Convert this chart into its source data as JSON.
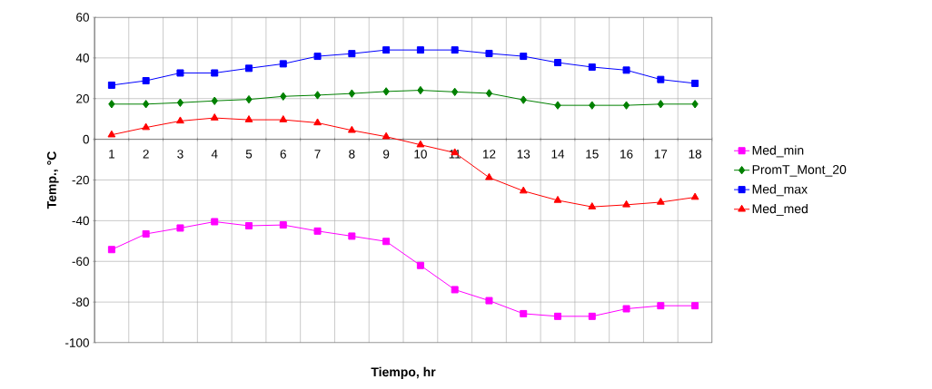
{
  "chart_data": {
    "type": "line",
    "xlabel": "Tiempo, hr",
    "ylabel": "Temp., °C",
    "categories": [
      "1",
      "2",
      "3",
      "4",
      "5",
      "6",
      "7",
      "8",
      "9",
      "10",
      "11",
      "12",
      "13",
      "14",
      "15",
      "16",
      "17",
      "18"
    ],
    "ylim": [
      -100,
      60
    ],
    "yticks": [
      -100,
      -80,
      -60,
      -40,
      -20,
      0,
      20,
      40,
      60
    ],
    "grid": true,
    "legend": "right",
    "series": [
      {
        "name": "Med_min",
        "color": "#ff00ff",
        "marker": "square",
        "values": [
          -54.2,
          -46.5,
          -43.6,
          -40.5,
          -42.5,
          -42.1,
          -45.1,
          -47.6,
          -50.2,
          -62.0,
          -73.9,
          -79.3,
          -85.7,
          -87.0,
          -87.0,
          -83.3,
          -81.8,
          -81.8
        ]
      },
      {
        "name": "PromT_Mont_20",
        "color": "#008000",
        "marker": "diamond",
        "values": [
          17.3,
          17.3,
          18.0,
          18.9,
          19.6,
          21.1,
          21.7,
          22.5,
          23.5,
          24.1,
          23.3,
          22.6,
          19.4,
          16.7,
          16.7,
          16.7,
          17.3,
          17.3
        ]
      },
      {
        "name": "Med_max",
        "color": "#0000ff",
        "marker": "square",
        "values": [
          26.6,
          28.8,
          32.6,
          32.6,
          34.9,
          37.1,
          40.8,
          42.1,
          43.9,
          43.9,
          43.9,
          42.2,
          40.8,
          37.7,
          35.5,
          34.0,
          29.4,
          27.5
        ]
      },
      {
        "name": "Med_med",
        "color": "#ff0000",
        "marker": "triangle",
        "values": [
          2.2,
          5.8,
          9.0,
          10.5,
          9.6,
          9.6,
          8.1,
          4.4,
          1.3,
          -2.7,
          -6.6,
          -18.8,
          -25.4,
          -30.0,
          -33.2,
          -32.2,
          -30.9,
          -28.5
        ]
      }
    ]
  }
}
